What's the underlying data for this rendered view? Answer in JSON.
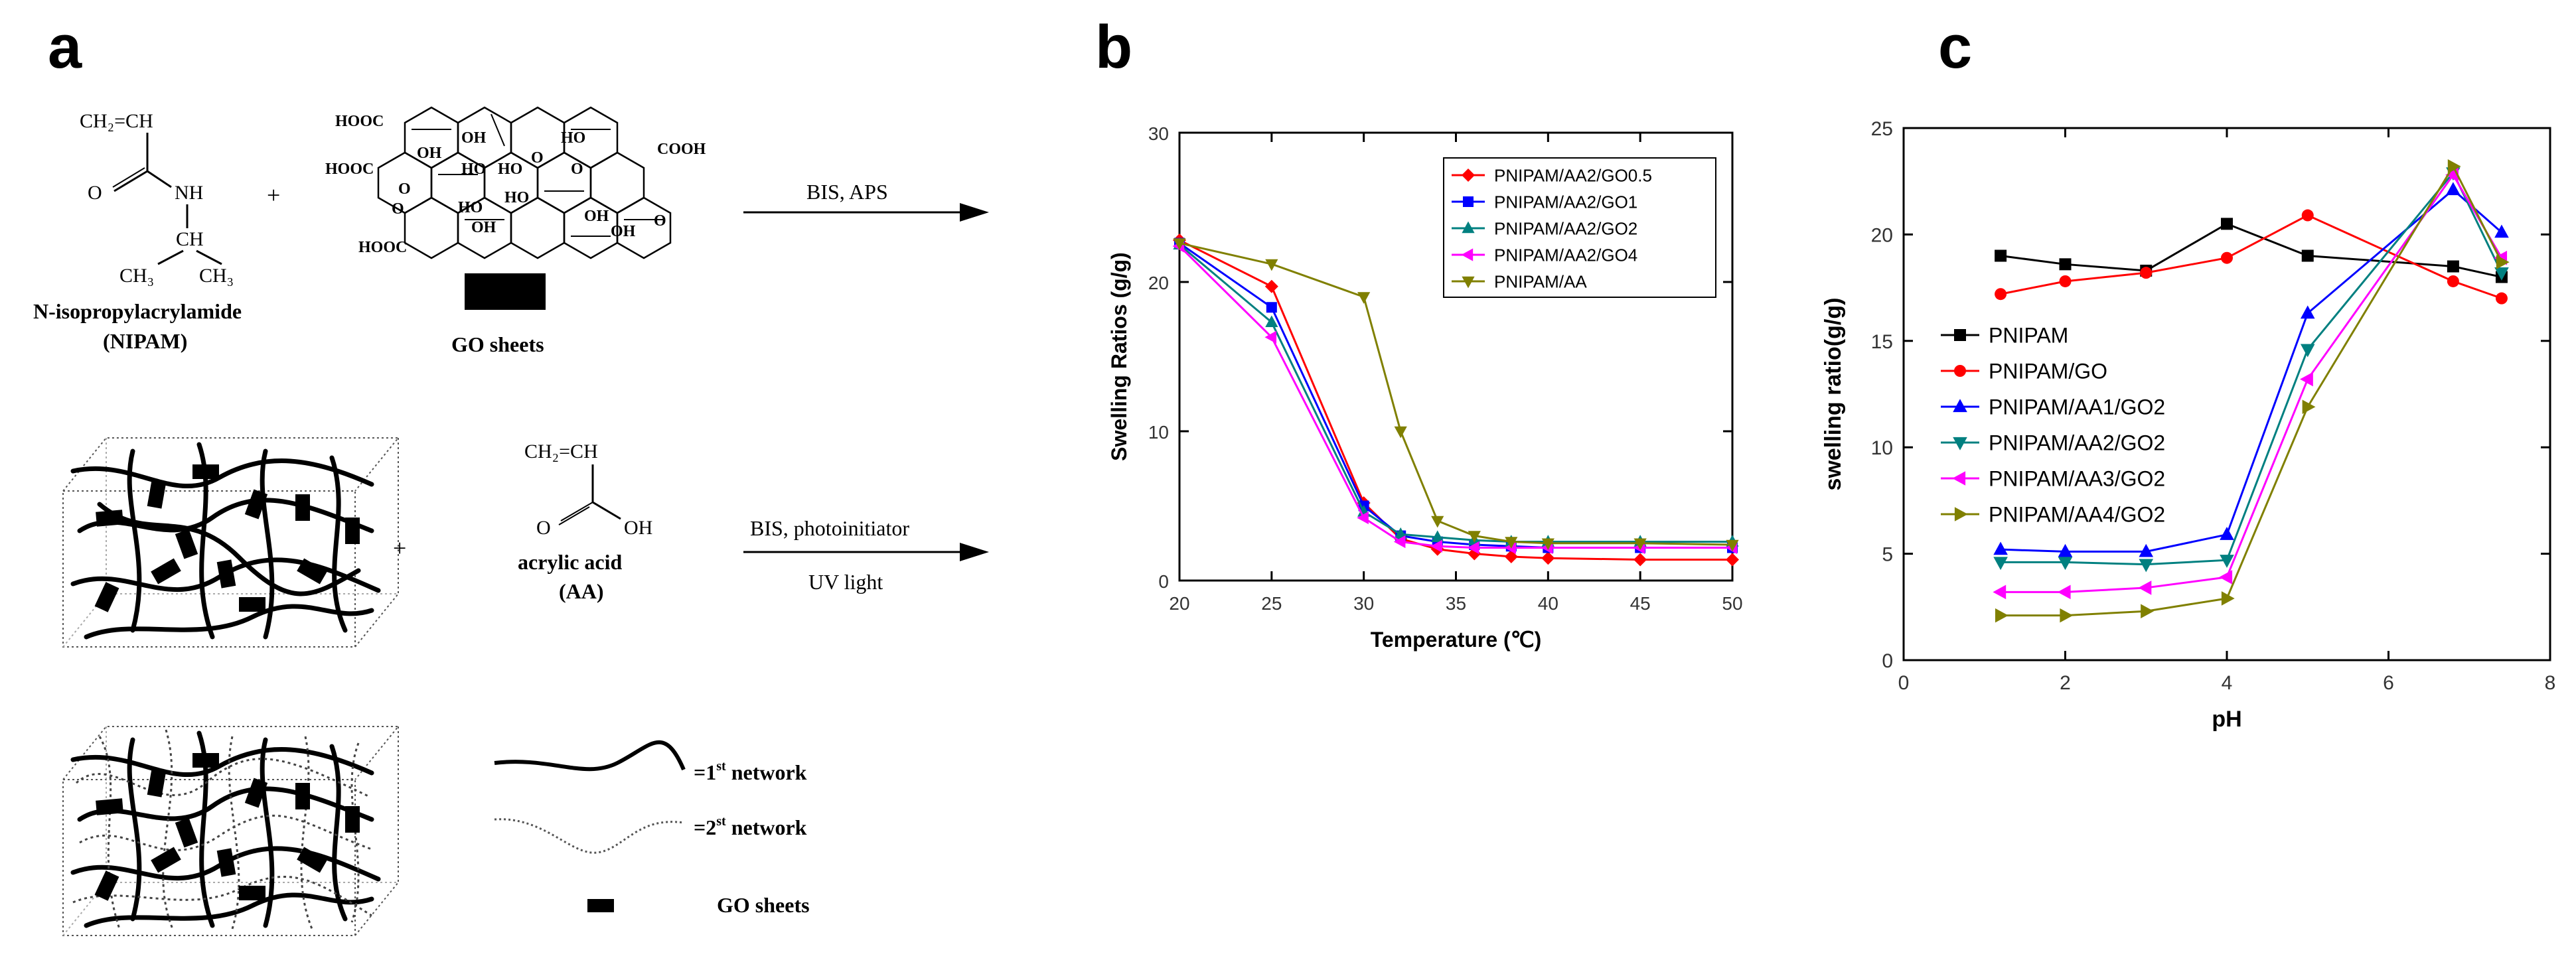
{
  "panel_a": {
    "letter": "a",
    "nipam_vinyl": "CH₂=CH",
    "nipam_nh": "NH",
    "nipam_o": "O",
    "nipam_ch": "CH",
    "nipam_ch3_left": "CH₃",
    "nipam_ch3_right": "CH₃",
    "nipam_name": "N-isopropylacrylamide",
    "nipam_abbr": "(NIPAM)",
    "plus1": "+",
    "go_label": "GO sheets",
    "go_groups": {
      "cooh_tl1": "HOOC",
      "cooh_tl2": "HOOC",
      "cooh_tr": "COOH",
      "cooh_bl": "HOOC",
      "oh1": "OH",
      "oh2": "OH",
      "ho1": "HO",
      "ho2": "HO",
      "ho3": "HO",
      "ho4": "HO",
      "ho5": "HO",
      "oh3": "OH",
      "oh4": "OH",
      "oh5": "OH",
      "o1": "O",
      "o2": "O",
      "o3": "O",
      "o4": "O",
      "o5": "O"
    },
    "arrow1_label": "BIS, APS",
    "plus2": "+",
    "aa_vinyl": "CH₂=CH",
    "aa_o": "O",
    "aa_oh": "OH",
    "aa_name": "acrylic acid",
    "aa_abbr": "(AA)",
    "arrow2_label_top": "BIS, photoinitiator",
    "arrow2_label_bottom": "UV light",
    "legend_net1": "=1",
    "legend_net1_sup": "st",
    "legend_net1_suffix": " network",
    "legend_net2": "=2",
    "legend_net2_sup": "st",
    "legend_net2_suffix": " network",
    "legend_go": "GO sheets"
  },
  "panel_b": {
    "letter": "b",
    "colors": [
      "#ff0000",
      "#0000ff",
      "#008080",
      "#ff00ff",
      "#808000"
    ],
    "markers": [
      "diamond",
      "square",
      "triangle-up",
      "triangle-left",
      "triangle-down"
    ]
  },
  "panel_c": {
    "letter": "c",
    "colors": [
      "#000000",
      "#ff0000",
      "#0000ff",
      "#008080",
      "#ff00ff",
      "#808000"
    ],
    "markers": [
      "square",
      "circle",
      "triangle-up",
      "triangle-down",
      "triangle-left",
      "triangle-right"
    ]
  },
  "chart_data": [
    {
      "id": "b",
      "type": "line",
      "xlabel": "Temperature (℃)",
      "ylabel": "Swelling Ratios (g/g)",
      "xlim": [
        20,
        50
      ],
      "ylim": [
        0,
        30
      ],
      "xticks": [
        20,
        25,
        30,
        35,
        40,
        45,
        50
      ],
      "yticks": [
        0,
        10,
        20,
        30
      ],
      "legend_position": "top-right",
      "series": [
        {
          "name": "PNIPAM/AA2/GO0.5",
          "x": [
            20,
            25,
            30,
            32,
            34,
            36,
            38,
            40,
            45,
            50
          ],
          "y": [
            22.8,
            19.7,
            5.2,
            2.8,
            2.1,
            1.8,
            1.6,
            1.5,
            1.4,
            1.4
          ]
        },
        {
          "name": "PNIPAM/AA2/GO1",
          "x": [
            20,
            25,
            30,
            32,
            34,
            36,
            38,
            40,
            45,
            50
          ],
          "y": [
            22.6,
            18.3,
            5.0,
            3.0,
            2.6,
            2.4,
            2.3,
            2.2,
            2.2,
            2.2
          ]
        },
        {
          "name": "PNIPAM/AA2/GO2",
          "x": [
            20,
            25,
            30,
            32,
            34,
            36,
            38,
            40,
            45,
            50
          ],
          "y": [
            22.5,
            17.3,
            4.6,
            3.1,
            2.9,
            2.7,
            2.6,
            2.6,
            2.6,
            2.6
          ]
        },
        {
          "name": "PNIPAM/AA2/GO4",
          "x": [
            20,
            25,
            30,
            32,
            34,
            36,
            38,
            40,
            45,
            50
          ],
          "y": [
            22.4,
            16.3,
            4.2,
            2.6,
            2.3,
            2.2,
            2.2,
            2.2,
            2.2,
            2.2
          ]
        },
        {
          "name": "PNIPAM/AA",
          "x": [
            20,
            25,
            30,
            32,
            34,
            36,
            38,
            40,
            45,
            50
          ],
          "y": [
            22.6,
            21.2,
            19.0,
            10.0,
            4.0,
            3.0,
            2.6,
            2.5,
            2.5,
            2.4
          ]
        }
      ]
    },
    {
      "id": "c",
      "type": "line",
      "xlabel": "pH",
      "ylabel": "swelling ratio(g/g)",
      "xlim": [
        0,
        8
      ],
      "ylim": [
        0,
        25
      ],
      "xticks": [
        0,
        2,
        4,
        6,
        8
      ],
      "yticks": [
        0,
        5,
        10,
        15,
        20,
        25
      ],
      "legend_position": "middle-left",
      "series": [
        {
          "name": "PNIPAM",
          "x": [
            1.2,
            2.0,
            3.0,
            4.0,
            5.0,
            6.8,
            7.4
          ],
          "y": [
            19.0,
            18.6,
            18.3,
            20.5,
            19.0,
            18.5,
            18.0
          ]
        },
        {
          "name": "PNIPAM/GO",
          "x": [
            1.2,
            2.0,
            3.0,
            4.0,
            5.0,
            6.8,
            7.4
          ],
          "y": [
            17.2,
            17.8,
            18.2,
            18.9,
            20.9,
            17.8,
            17.0
          ]
        },
        {
          "name": "PNIPAM/AA1/GO2",
          "x": [
            1.2,
            2.0,
            3.0,
            4.0,
            5.0,
            6.8,
            7.4
          ],
          "y": [
            5.2,
            5.1,
            5.1,
            5.9,
            16.3,
            22.1,
            20.1
          ]
        },
        {
          "name": "PNIPAM/AA2/GO2",
          "x": [
            1.2,
            2.0,
            3.0,
            4.0,
            5.0,
            6.8,
            7.4
          ],
          "y": [
            4.6,
            4.6,
            4.5,
            4.7,
            14.6,
            22.9,
            18.2
          ]
        },
        {
          "name": "PNIPAM/AA3/GO2",
          "x": [
            1.2,
            2.0,
            3.0,
            4.0,
            5.0,
            6.8,
            7.4
          ],
          "y": [
            3.2,
            3.2,
            3.4,
            3.9,
            13.2,
            22.8,
            18.9
          ]
        },
        {
          "name": "PNIPAM/AA4/GO2",
          "x": [
            1.2,
            2.0,
            3.0,
            4.0,
            5.0,
            6.8,
            7.4
          ],
          "y": [
            2.1,
            2.1,
            2.3,
            2.9,
            11.9,
            23.2,
            18.7
          ]
        }
      ]
    }
  ]
}
